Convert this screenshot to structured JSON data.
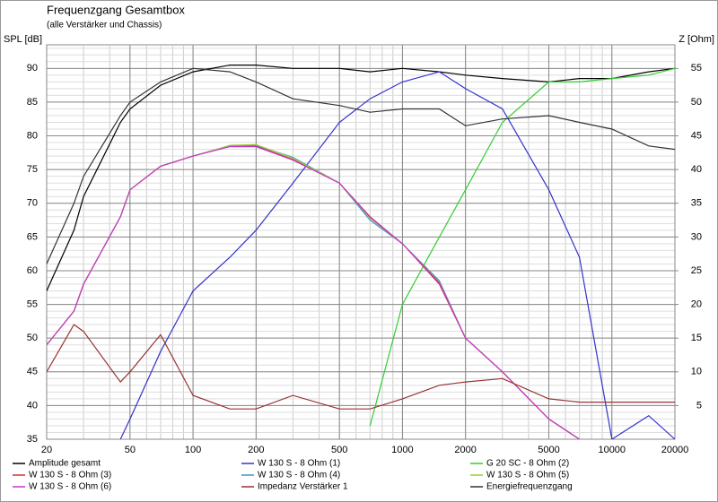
{
  "chart_data": {
    "type": "line",
    "title": "Frequenzgang Gesamtbox",
    "subtitle": "(alle Verstärker und Chassis)",
    "ylabel": "SPL [dB]",
    "y2label": "Z [Ohm]",
    "log_x": true,
    "grid": true,
    "x": [
      20,
      27,
      30,
      45,
      50,
      70,
      100,
      150,
      200,
      300,
      500,
      700,
      1000,
      1500,
      2000,
      3000,
      5000,
      7000,
      10000,
      15000,
      20000
    ],
    "xlim": [
      20,
      20000
    ],
    "xticks": [
      20,
      50,
      100,
      200,
      500,
      1000,
      2000,
      5000,
      10000,
      20000
    ],
    "ylim": [
      35,
      93.5
    ],
    "yticks": [
      35,
      40,
      45,
      50,
      55,
      60,
      65,
      70,
      75,
      80,
      85,
      90
    ],
    "y2lim": [
      0,
      58.5
    ],
    "y2ticks": [
      5,
      10,
      15,
      20,
      25,
      30,
      35,
      40,
      45,
      50,
      55
    ],
    "series": [
      {
        "name": "Amplitude gesamt",
        "color": "#000000",
        "values": [
          57,
          66,
          71,
          82,
          84,
          87.5,
          89.5,
          90.5,
          90.5,
          90,
          90,
          89.5,
          90,
          89.5,
          89,
          88.5,
          88,
          88.5,
          88.5,
          89.5,
          90
        ]
      },
      {
        "name": "W 130 S - 8 Ohm (1)",
        "color": "#3333cc",
        "values": [
          null,
          null,
          null,
          35,
          38,
          48,
          57,
          62,
          66,
          73,
          82,
          85.5,
          88,
          89.5,
          87,
          84,
          72,
          62,
          35,
          38.5,
          35
        ]
      },
      {
        "name": "G 20 SC - 8 Ohm (2)",
        "color": "#33cc33",
        "values": [
          null,
          null,
          null,
          null,
          null,
          null,
          null,
          null,
          null,
          null,
          null,
          37,
          55,
          65,
          72,
          82,
          88,
          88,
          88.5,
          89,
          90
        ]
      },
      {
        "name": "W 130 S - 8 Ohm (3)",
        "color": "#cc3333",
        "values": [
          49,
          54,
          58,
          68,
          72,
          75.5,
          77,
          78.5,
          78.5,
          76.5,
          73,
          68,
          64,
          58,
          50,
          45,
          38,
          35,
          null,
          null,
          null
        ]
      },
      {
        "name": "W 130 S - 8 Ohm (4)",
        "color": "#3399cc",
        "values": [
          49,
          54,
          58,
          68,
          72,
          75.5,
          77,
          78.5,
          78.6,
          76.8,
          73,
          67.5,
          64,
          58.5,
          50,
          45,
          38,
          35,
          null,
          null,
          null
        ]
      },
      {
        "name": "W 130 S - 8 Ohm (5)",
        "color": "#99cc33",
        "values": [
          49,
          54,
          58,
          68,
          72,
          75.5,
          77,
          78.6,
          78.7,
          76.7,
          73,
          67.8,
          64,
          58.3,
          50,
          45,
          38,
          35,
          null,
          null,
          null
        ]
      },
      {
        "name": "W 130 S - 8 Ohm (6)",
        "color": "#cc33cc",
        "values": [
          49,
          54,
          58,
          68,
          72,
          75.5,
          77,
          78.4,
          78.4,
          76.4,
          73,
          67.9,
          64,
          58.2,
          50,
          45,
          38,
          35,
          null,
          null,
          null
        ]
      },
      {
        "name": "Impedanz Verstärker 1",
        "color": "#993333",
        "axis": "y2",
        "values": [
          10,
          17,
          16,
          8.5,
          10,
          15.5,
          6.5,
          4.5,
          4.5,
          6.5,
          4.5,
          4.5,
          6,
          8,
          8.5,
          9,
          6,
          5.5,
          5.5,
          5.5,
          5.5
        ]
      },
      {
        "name": "Energiefrequenzgang",
        "color": "#333333",
        "values": [
          61,
          70,
          74,
          83,
          85,
          88,
          90,
          89.5,
          88,
          85.5,
          84.5,
          83.5,
          84,
          84,
          81.5,
          82.5,
          83,
          82,
          81,
          78.5,
          78
        ]
      }
    ]
  }
}
